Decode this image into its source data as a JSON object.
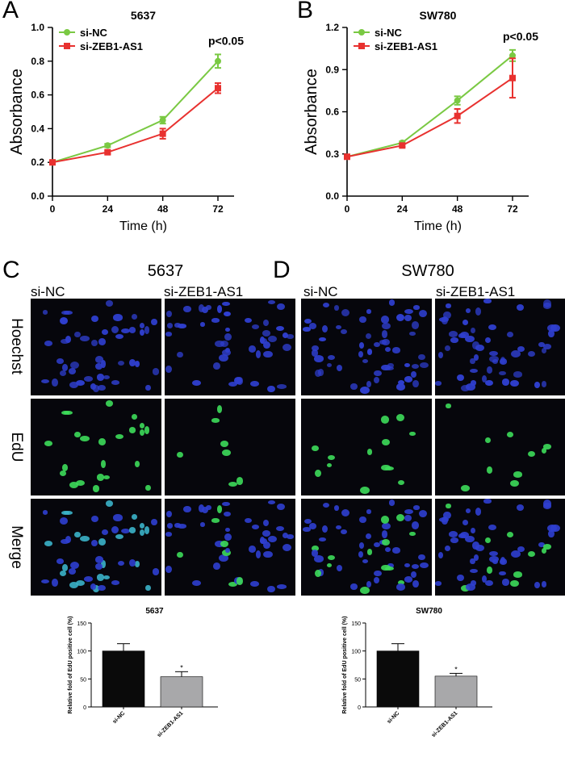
{
  "panels": {
    "A": "A",
    "B": "B",
    "C": "C",
    "D": "D"
  },
  "growth_charts": [
    {
      "panel": "A",
      "type": "line",
      "title": "5637",
      "xlabel": "Time (h)",
      "ylabel": "Absorbance",
      "x": [
        0,
        24,
        48,
        72
      ],
      "xlim": [
        0,
        72
      ],
      "ylim": [
        0,
        1.0
      ],
      "yticks": [
        "0.0",
        "0.2",
        "0.4",
        "0.6",
        "0.8",
        "1.0"
      ],
      "xticks": [
        "0",
        "24",
        "48",
        "72"
      ],
      "annotation": "p<0.05",
      "series": [
        {
          "name": "si-NC",
          "color": "#7ac943",
          "values": [
            0.2,
            0.3,
            0.45,
            0.8
          ],
          "errors": [
            0.01,
            0.01,
            0.02,
            0.04
          ]
        },
        {
          "name": "si-ZEB1-AS1",
          "color": "#e8312f",
          "values": [
            0.2,
            0.26,
            0.37,
            0.64
          ],
          "errors": [
            0.01,
            0.01,
            0.03,
            0.03
          ]
        }
      ]
    },
    {
      "panel": "B",
      "type": "line",
      "title": "SW780",
      "xlabel": "Time (h)",
      "ylabel": "Absorbance",
      "x": [
        0,
        24,
        48,
        72
      ],
      "xlim": [
        0,
        72
      ],
      "ylim": [
        0,
        1.2
      ],
      "yticks": [
        "0.0",
        "0.3",
        "0.6",
        "0.9",
        "1.2"
      ],
      "xticks": [
        "0",
        "24",
        "48",
        "72"
      ],
      "annotation": "p<0.05",
      "series": [
        {
          "name": "si-NC",
          "color": "#7ac943",
          "values": [
            0.28,
            0.38,
            0.68,
            1.0
          ],
          "errors": [
            0.01,
            0.01,
            0.03,
            0.04
          ]
        },
        {
          "name": "si-ZEB1-AS1",
          "color": "#e8312f",
          "values": [
            0.28,
            0.36,
            0.57,
            0.84
          ],
          "errors": [
            0.01,
            0.01,
            0.05,
            0.14
          ]
        }
      ]
    }
  ],
  "microscopy": {
    "left": {
      "title": "5637",
      "conditions": [
        "si-NC",
        "si-ZEB1-AS1"
      ]
    },
    "right": {
      "title": "SW780",
      "conditions": [
        "si-NC",
        "si-ZEB1-AS1"
      ]
    },
    "rows": [
      "Hoechst",
      "EdU",
      "Merge"
    ],
    "colors": {
      "hoechst": "#2f3fd0",
      "edu": "#3ddc5a",
      "merge_cyan": "#3bb3c9"
    }
  },
  "bar_charts": [
    {
      "type": "bar",
      "title": "5637",
      "ylabel": "Relative fold of EdU positive cell (%)",
      "ylim": [
        0,
        150
      ],
      "yticks": [
        "0",
        "50",
        "100",
        "150"
      ],
      "categories": [
        "si-NC",
        "si-ZEB1-AS1"
      ],
      "values": [
        100,
        54
      ],
      "errors": [
        13,
        9
      ],
      "colors": [
        "#0a0a0a",
        "#a8a8aa"
      ],
      "significance": [
        "",
        "*"
      ]
    },
    {
      "type": "bar",
      "title": "SW780",
      "ylabel": "Relative fold of EdU positive cell (%)",
      "ylim": [
        0,
        150
      ],
      "yticks": [
        "0",
        "50",
        "100",
        "150"
      ],
      "categories": [
        "si-NC",
        "si-ZEB1-AS1"
      ],
      "values": [
        100,
        55
      ],
      "errors": [
        13,
        5
      ],
      "colors": [
        "#0a0a0a",
        "#a8a8aa"
      ],
      "significance": [
        "",
        "*"
      ]
    }
  ]
}
